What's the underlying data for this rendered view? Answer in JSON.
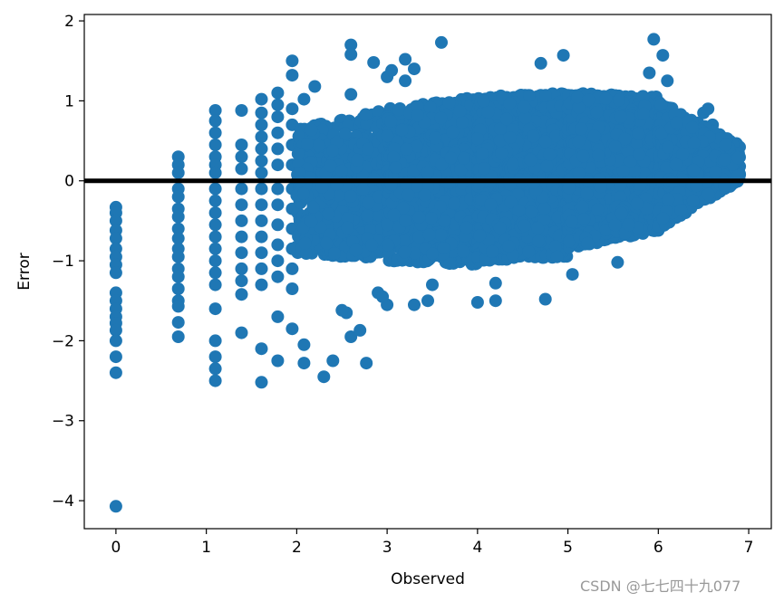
{
  "chart_data": {
    "type": "scatter",
    "title": "",
    "xlabel": "Observed",
    "ylabel": "Error",
    "xlim": [
      -0.35,
      7.25
    ],
    "ylim": [
      -4.35,
      2.08
    ],
    "xticks": [
      0,
      1,
      2,
      3,
      4,
      5,
      6,
      7
    ],
    "yticks": [
      -4,
      -3,
      -2,
      -1,
      0,
      1,
      2
    ],
    "ytick_labels": [
      "−4",
      "−3",
      "−2",
      "−1",
      "0",
      "1",
      "2"
    ],
    "marker_color": "#1f77b4",
    "reference_line": {
      "y": 0,
      "color": "#000000"
    },
    "grid": false,
    "points": [
      [
        0,
        -0.33
      ],
      [
        0,
        -0.4
      ],
      [
        0,
        -0.5
      ],
      [
        0,
        -0.62
      ],
      [
        0,
        -0.72
      ],
      [
        0,
        -0.85
      ],
      [
        0,
        -0.95
      ],
      [
        0,
        -1.05
      ],
      [
        0,
        -1.15
      ],
      [
        0,
        -1.4
      ],
      [
        0,
        -1.5
      ],
      [
        0,
        -1.6
      ],
      [
        0,
        -1.7
      ],
      [
        0,
        -1.78
      ],
      [
        0,
        -1.87
      ],
      [
        0,
        -2.0
      ],
      [
        0,
        -2.2
      ],
      [
        0,
        -2.4
      ],
      [
        0,
        -4.07
      ],
      [
        0.69,
        0.3
      ],
      [
        0.69,
        0.2
      ],
      [
        0.69,
        0.1
      ],
      [
        0.69,
        -0.1
      ],
      [
        0.69,
        -0.2
      ],
      [
        0.69,
        -0.35
      ],
      [
        0.69,
        -0.45
      ],
      [
        0.69,
        -0.6
      ],
      [
        0.69,
        -0.72
      ],
      [
        0.69,
        -0.85
      ],
      [
        0.69,
        -0.95
      ],
      [
        0.69,
        -1.1
      ],
      [
        0.69,
        -1.2
      ],
      [
        0.69,
        -1.35
      ],
      [
        0.69,
        -1.5
      ],
      [
        0.69,
        -1.57
      ],
      [
        0.69,
        -1.77
      ],
      [
        0.69,
        -1.95
      ],
      [
        1.1,
        0.88
      ],
      [
        1.1,
        0.75
      ],
      [
        1.1,
        0.6
      ],
      [
        1.1,
        0.45
      ],
      [
        1.1,
        0.3
      ],
      [
        1.1,
        0.2
      ],
      [
        1.1,
        0.1
      ],
      [
        1.1,
        -0.1
      ],
      [
        1.1,
        -0.25
      ],
      [
        1.1,
        -0.4
      ],
      [
        1.1,
        -0.55
      ],
      [
        1.1,
        -0.7
      ],
      [
        1.1,
        -0.85
      ],
      [
        1.1,
        -1.0
      ],
      [
        1.1,
        -1.15
      ],
      [
        1.1,
        -1.3
      ],
      [
        1.1,
        -1.6
      ],
      [
        1.1,
        -2.0
      ],
      [
        1.1,
        -2.2
      ],
      [
        1.1,
        -2.35
      ],
      [
        1.1,
        -2.5
      ],
      [
        1.39,
        0.88
      ],
      [
        1.39,
        0.45
      ],
      [
        1.39,
        0.3
      ],
      [
        1.39,
        0.15
      ],
      [
        1.39,
        -0.1
      ],
      [
        1.39,
        -0.3
      ],
      [
        1.39,
        -0.5
      ],
      [
        1.39,
        -0.7
      ],
      [
        1.39,
        -0.9
      ],
      [
        1.39,
        -1.1
      ],
      [
        1.39,
        -1.25
      ],
      [
        1.39,
        -1.42
      ],
      [
        1.39,
        -1.9
      ],
      [
        1.61,
        1.02
      ],
      [
        1.61,
        0.85
      ],
      [
        1.61,
        0.7
      ],
      [
        1.61,
        0.55
      ],
      [
        1.61,
        0.4
      ],
      [
        1.61,
        0.25
      ],
      [
        1.61,
        0.1
      ],
      [
        1.61,
        -0.1
      ],
      [
        1.61,
        -0.3
      ],
      [
        1.61,
        -0.5
      ],
      [
        1.61,
        -0.7
      ],
      [
        1.61,
        -0.9
      ],
      [
        1.61,
        -1.1
      ],
      [
        1.61,
        -1.3
      ],
      [
        1.61,
        -2.1
      ],
      [
        1.61,
        -2.52
      ],
      [
        1.79,
        1.1
      ],
      [
        1.79,
        0.95
      ],
      [
        1.79,
        0.8
      ],
      [
        1.79,
        0.6
      ],
      [
        1.79,
        0.4
      ],
      [
        1.79,
        0.2
      ],
      [
        1.79,
        -0.1
      ],
      [
        1.79,
        -0.3
      ],
      [
        1.79,
        -0.55
      ],
      [
        1.79,
        -0.8
      ],
      [
        1.79,
        -1.0
      ],
      [
        1.79,
        -1.2
      ],
      [
        1.79,
        -1.7
      ],
      [
        1.79,
        -2.25
      ],
      [
        1.95,
        1.5
      ],
      [
        1.95,
        1.32
      ],
      [
        1.95,
        0.9
      ],
      [
        1.95,
        0.7
      ],
      [
        1.95,
        0.45
      ],
      [
        1.95,
        0.2
      ],
      [
        1.95,
        -0.1
      ],
      [
        1.95,
        -0.35
      ],
      [
        1.95,
        -0.6
      ],
      [
        1.95,
        -0.85
      ],
      [
        1.95,
        -1.1
      ],
      [
        1.95,
        -1.35
      ],
      [
        1.95,
        -1.85
      ],
      [
        2.08,
        1.02
      ],
      [
        2.08,
        -2.05
      ],
      [
        2.08,
        -2.28
      ],
      [
        2.2,
        1.18
      ],
      [
        2.3,
        -2.45
      ],
      [
        2.4,
        -2.25
      ],
      [
        2.55,
        -1.65
      ],
      [
        2.6,
        -1.95
      ],
      [
        2.5,
        -1.62
      ],
      [
        2.6,
        1.7
      ],
      [
        2.6,
        1.58
      ],
      [
        2.6,
        1.08
      ],
      [
        2.7,
        -1.87
      ],
      [
        2.77,
        -2.28
      ],
      [
        2.85,
        1.48
      ],
      [
        3.0,
        1.3
      ],
      [
        3.05,
        1.38
      ],
      [
        3.2,
        1.52
      ],
      [
        3.3,
        1.4
      ],
      [
        3.6,
        1.73
      ],
      [
        3.2,
        1.25
      ],
      [
        4.95,
        1.57
      ],
      [
        5.95,
        1.77
      ],
      [
        6.05,
        1.57
      ],
      [
        4.7,
        1.47
      ],
      [
        5.9,
        1.35
      ],
      [
        6.1,
        1.25
      ],
      [
        3.0,
        -1.55
      ],
      [
        3.3,
        -1.55
      ],
      [
        3.45,
        -1.5
      ],
      [
        4.0,
        -1.52
      ],
      [
        4.2,
        -1.5
      ],
      [
        4.75,
        -1.48
      ],
      [
        5.05,
        -1.17
      ],
      [
        5.55,
        -1.02
      ],
      [
        2.9,
        -1.4
      ],
      [
        3.5,
        -1.3
      ],
      [
        4.2,
        -1.28
      ],
      [
        2.95,
        -1.45
      ],
      [
        6.9,
        0.18
      ],
      [
        6.8,
        0.3
      ],
      [
        6.7,
        0.55
      ],
      [
        6.6,
        0.7
      ],
      [
        6.5,
        0.85
      ],
      [
        6.55,
        0.9
      ],
      [
        6.5,
        -0.2
      ],
      [
        6.3,
        -0.4
      ],
      [
        6.1,
        -0.5
      ],
      [
        6.0,
        -0.62
      ]
    ],
    "dense_bands": [
      {
        "x": [
          2.0,
          3.0
        ],
        "y_low": [
          -0.9,
          -1.0
        ],
        "y_high": [
          0.65,
          0.9
        ],
        "count": 700
      },
      {
        "x": [
          3.0,
          4.0
        ],
        "y_low": [
          -1.0,
          -1.05
        ],
        "y_high": [
          0.9,
          1.05
        ],
        "count": 1400
      },
      {
        "x": [
          4.0,
          5.0
        ],
        "y_low": [
          -1.0,
          -0.95
        ],
        "y_high": [
          1.05,
          1.1
        ],
        "count": 2200
      },
      {
        "x": [
          5.0,
          6.0
        ],
        "y_low": [
          -0.85,
          -0.62
        ],
        "y_high": [
          1.1,
          1.05
        ],
        "count": 2400
      },
      {
        "x": [
          6.0,
          6.9
        ],
        "y_low": [
          -0.6,
          0.0
        ],
        "y_high": [
          1.0,
          0.45
        ],
        "count": 1000
      }
    ]
  },
  "watermark": "CSDN @七七四十九077"
}
